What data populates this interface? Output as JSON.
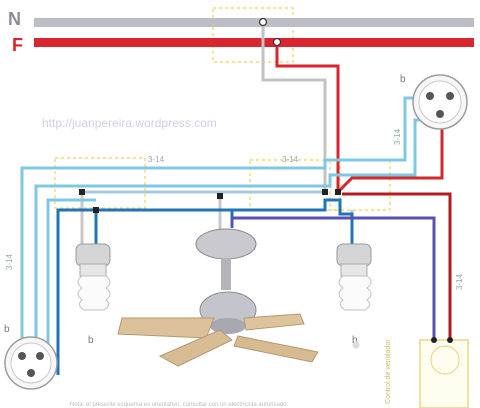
{
  "bus": {
    "neutral_label": "N",
    "phase_label": "F"
  },
  "watermark": "http://juanpereira.wordpress.com",
  "labels": {
    "switch_top_right": "b",
    "switch_bottom_left": "b",
    "bulb_left": "b",
    "bulb_right": "b",
    "wire_top_left": "3-14",
    "wire_top_center": "3-14",
    "wire_right_vertical": "3-14",
    "wire_left_vertical": "3-14",
    "wire_right_lower": "3-14",
    "controller_vertical": "Control de ventilador"
  },
  "footer_note": "Nota: el presente esquema es orientativo, consultar con un electricista autorizado.",
  "colors": {
    "neutral": "#b9b9c2",
    "phase": "#d8252f",
    "light_blue": "#7fc8e3",
    "blue": "#1f74b8",
    "violet": "#5a4fb3",
    "dark_red": "#b01c23",
    "gray_wire": "#bfbfbf",
    "dashed_box": "#f0d36d"
  }
}
